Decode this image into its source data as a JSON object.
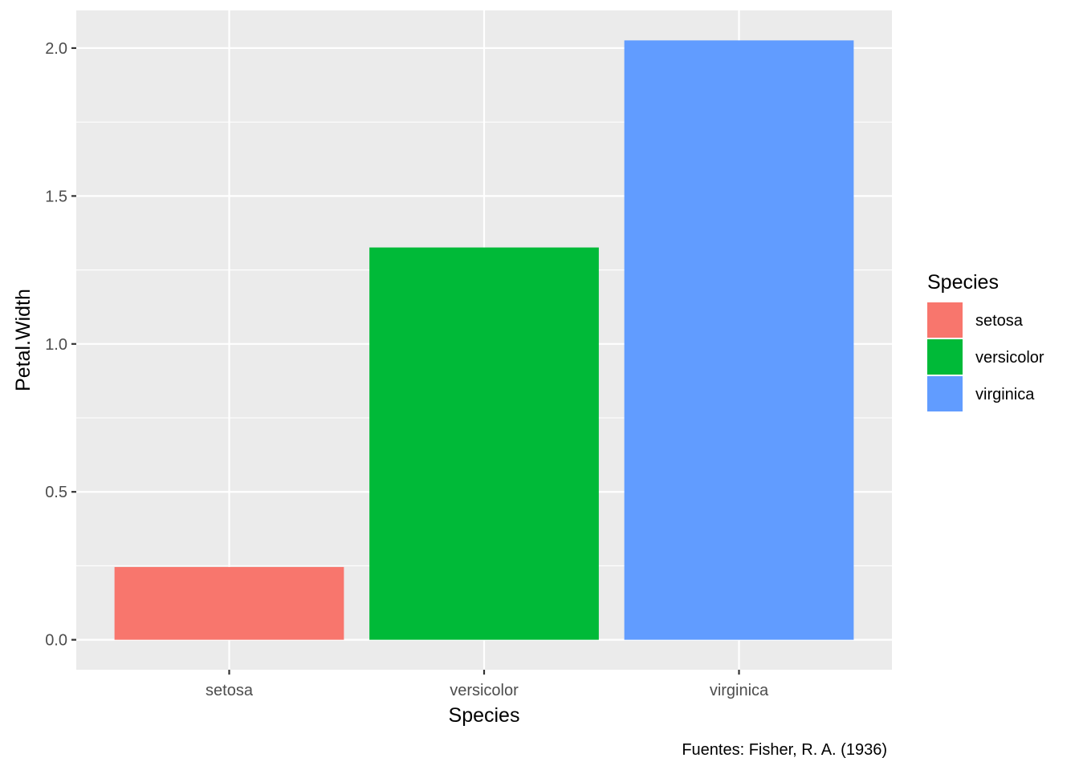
{
  "chart_data": {
    "type": "bar",
    "categories": [
      "setosa",
      "versicolor",
      "virginica"
    ],
    "values": [
      0.246,
      1.326,
      2.026
    ],
    "colors": [
      "#F8766D",
      "#00BA38",
      "#619CFF"
    ],
    "xlabel": "Species",
    "ylabel": "Petal.Width",
    "ylim": [
      -0.1013,
      2.1273
    ],
    "yticks": [
      0.0,
      0.5,
      1.0,
      1.5,
      2.0
    ],
    "ytick_labels": [
      "0.0",
      "0.5",
      "1.0",
      "1.5",
      "2.0"
    ],
    "grid": true,
    "legend": {
      "title": "Species",
      "placement": "right",
      "entries": [
        "setosa",
        "versicolor",
        "virginica"
      ]
    },
    "caption": "Fuentes: Fisher, R. A. (1936)"
  }
}
